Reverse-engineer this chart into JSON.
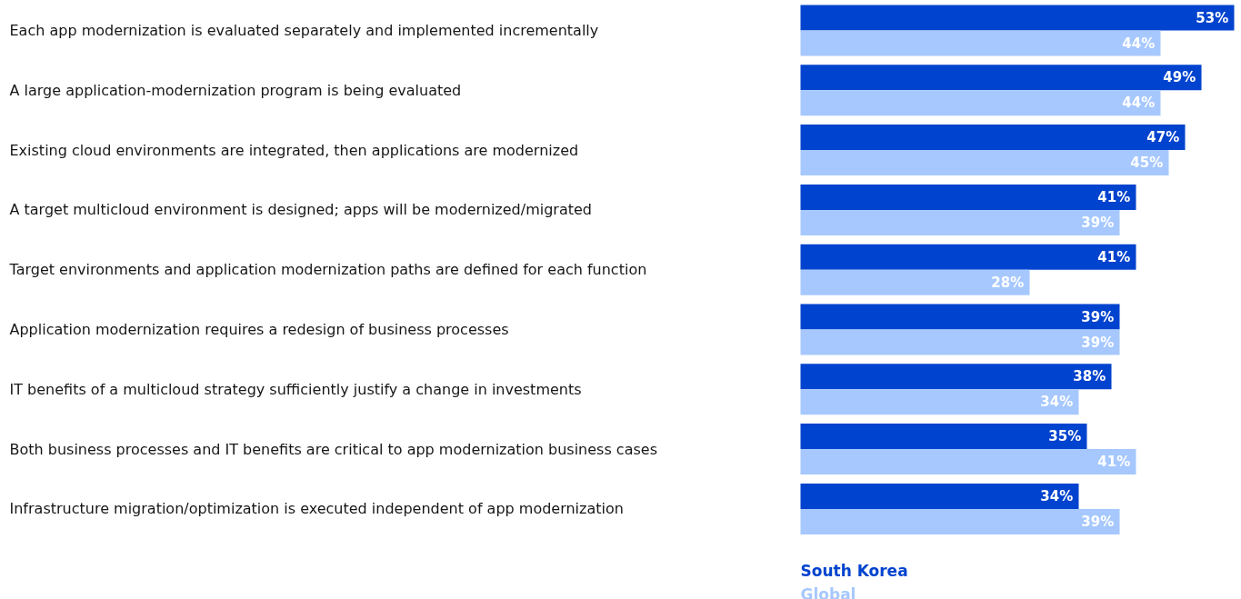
{
  "chart_data": {
    "type": "bar",
    "orientation": "horizontal",
    "legend": "bottom left",
    "categories": [
      "Each app modernization is evaluated separately and implemented incrementally",
      "A large application-modernization program is being evaluated",
      "Existing cloud environments are integrated, then applications are modernized",
      "A target multicloud environment is designed; apps will be modernized/migrated",
      "Target environments and application modernization paths are defined for each function",
      "Application modernization requires a redesign of business processes",
      "IT benefits of a multicloud strategy sufficiently justify a change in investments",
      "Both business processes and IT benefits are critical to app modernization business cases",
      "Infrastructure migration/optimization is executed independent of app modernization"
    ],
    "series": [
      {
        "name": "South Korea",
        "color": "#0043ce",
        "values": [
          53,
          49,
          47,
          41,
          41,
          39,
          38,
          35,
          34
        ],
        "value_labels": [
          "53%",
          "49%",
          "47%",
          "41%",
          "41%",
          "39%",
          "38%",
          "35%",
          "34%"
        ]
      },
      {
        "name": "Global",
        "color": "#a6c8ff",
        "values": [
          44,
          44,
          45,
          39,
          28,
          39,
          34,
          41,
          39
        ],
        "value_labels": [
          "44%",
          "44%",
          "45%",
          "39%",
          "28%",
          "39%",
          "34%",
          "41%",
          "39%"
        ]
      }
    ]
  }
}
